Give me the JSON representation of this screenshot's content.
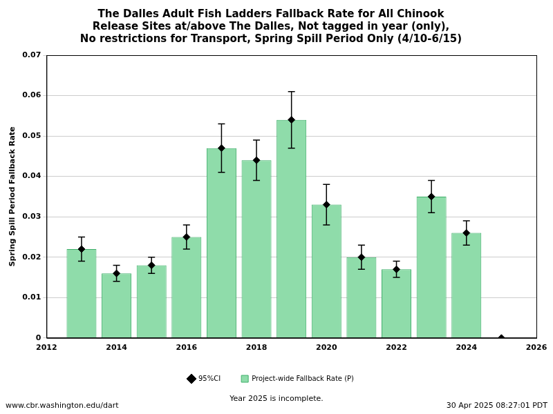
{
  "chart_data": {
    "type": "bar",
    "title": [
      "The Dalles Adult Fish Ladders Fallback Rate for All Chinook",
      "Release Sites at/above The Dalles, Not tagged in year (only),",
      "No restrictions for Transport, Spring Spill Period Only (4/10-6/15)"
    ],
    "y_label": "Spring Spill Period Fallback Rate",
    "annotations": [
      "www.cbr.washington.edu/dart",
      "Year 2025 is incomplete.",
      "30 Apr 2025 08:27:01 PDT"
    ],
    "x": [
      2013,
      2014,
      2015,
      2016,
      2017,
      2018,
      2019,
      2020,
      2021,
      2022,
      2023,
      2024,
      2025
    ],
    "series": [
      {
        "name": "Project-wide Fallback Rate (P)",
        "type": "bar",
        "color": "#8fdcaa",
        "values": [
          0.022,
          0.016,
          0.018,
          0.025,
          0.047,
          0.044,
          0.054,
          0.033,
          0.02,
          0.017,
          0.035,
          0.026,
          0
        ]
      },
      {
        "name": "95%CI",
        "type": "scatter",
        "color": "#000000",
        "marker": "diamond",
        "values": [
          0.022,
          0.016,
          0.018,
          0.025,
          0.047,
          0.044,
          0.054,
          0.033,
          0.02,
          0.017,
          0.035,
          0.026,
          0
        ],
        "ci_low": [
          0.019,
          0.014,
          0.016,
          0.022,
          0.041,
          0.039,
          0.047,
          0.028,
          0.017,
          0.015,
          0.031,
          0.023,
          null
        ],
        "ci_high": [
          0.025,
          0.018,
          0.02,
          0.028,
          0.053,
          0.049,
          0.061,
          0.038,
          0.023,
          0.019,
          0.039,
          0.029,
          null
        ]
      }
    ],
    "xlim": [
      2012,
      2026
    ],
    "xticks": [
      2012,
      2014,
      2016,
      2018,
      2020,
      2022,
      2024,
      2026
    ],
    "ylim": [
      0,
      0.07
    ],
    "yticks": [
      0,
      0.01,
      0.02,
      0.03,
      0.04,
      0.05,
      0.06,
      0.07
    ],
    "grid": "y",
    "legend": "bottom"
  }
}
